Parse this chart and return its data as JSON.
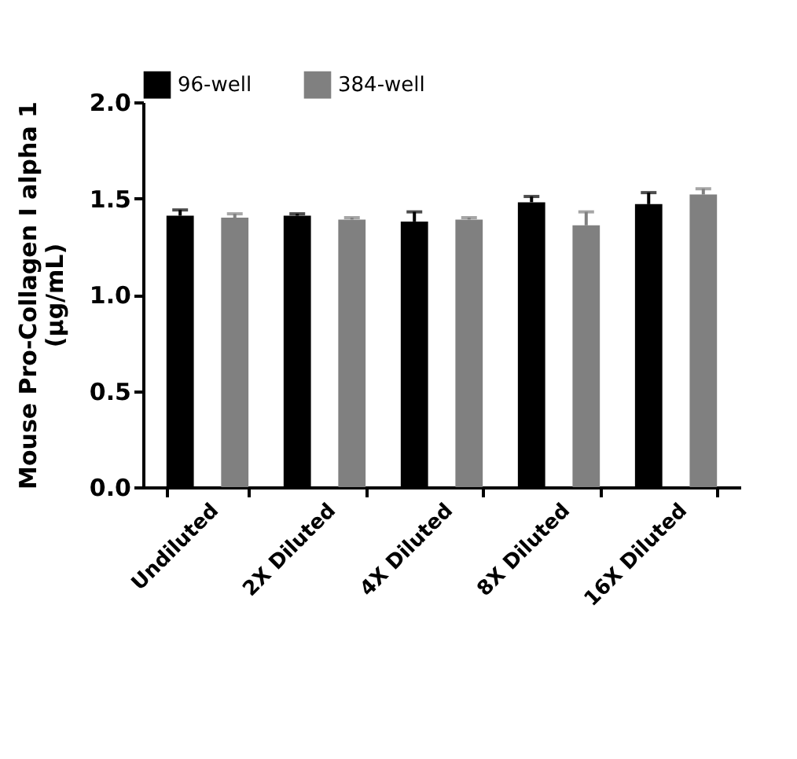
{
  "chart_data": {
    "type": "bar",
    "ylabel": "Mouse Pro-Collagen I alpha 1 (μg/mL)",
    "categories": [
      "Undiluted",
      "2X Diluted",
      "4X Diluted",
      "8X Diluted",
      "16X Diluted"
    ],
    "series": [
      {
        "name": "96-well",
        "color": "#000000",
        "values": [
          1.41,
          1.41,
          1.38,
          1.48,
          1.47
        ],
        "errors": [
          [
            1.41,
            1.44
          ],
          [
            1.41,
            1.42
          ],
          [
            1.38,
            1.43
          ],
          [
            1.48,
            1.51
          ],
          [
            1.47,
            1.53
          ]
        ]
      },
      {
        "name": "384-well",
        "color": "#808080",
        "values": [
          1.4,
          1.39,
          1.39,
          1.36,
          1.52
        ],
        "errors": [
          [
            1.4,
            1.42
          ],
          [
            1.39,
            1.4
          ],
          [
            1.39,
            1.4
          ],
          [
            1.36,
            1.43
          ],
          [
            1.52,
            1.55
          ]
        ]
      }
    ],
    "ylim": [
      0,
      2
    ],
    "yticks": [
      {
        "value": 0,
        "label": "0.0"
      },
      0.5,
      {
        "value": 1,
        "label": "1.0"
      },
      1.5,
      {
        "value": 2,
        "label": "2.0"
      }
    ],
    "grid": false,
    "legend": "top"
  }
}
